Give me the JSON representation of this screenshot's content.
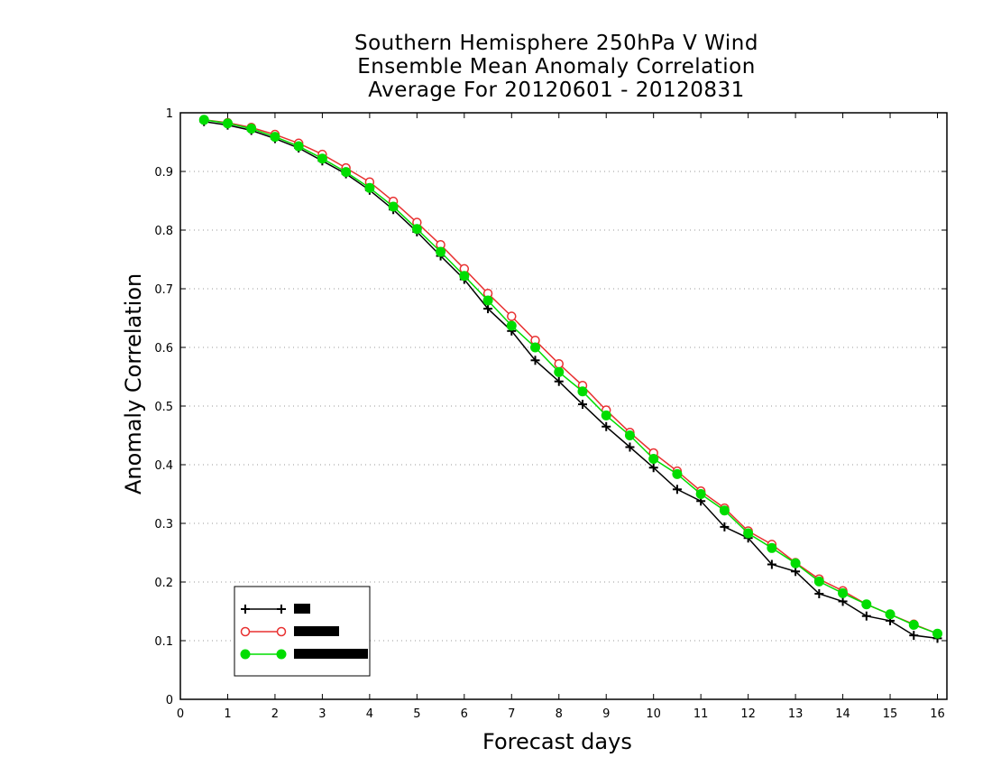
{
  "chart_data": {
    "type": "line",
    "title": [
      "Southern Hemisphere 250hPa V Wind",
      "Ensemble Mean Anomaly Correlation",
      "Average For 20120601 - 20120831"
    ],
    "xlabel": "Forecast days",
    "ylabel": "Anomaly Correlation",
    "xlim": [
      0,
      16.2
    ],
    "ylim": [
      0,
      1
    ],
    "xticks": [
      0,
      1,
      2,
      3,
      4,
      5,
      6,
      7,
      8,
      9,
      10,
      11,
      12,
      13,
      14,
      15,
      16
    ],
    "yticks": [
      0,
      0.1,
      0.2,
      0.3,
      0.4,
      0.5,
      0.6,
      0.7,
      0.8,
      0.9,
      1
    ],
    "ytick_labels": [
      "0",
      "0.1",
      "0.2",
      "0.3",
      "0.4",
      "0.5",
      "0.6",
      "0.7",
      "0.8",
      "0.9",
      "1"
    ],
    "grid": "horizontal dotted",
    "legend_position": "bottom-left",
    "x": [
      0.5,
      1,
      1.5,
      2,
      2.5,
      3,
      3.5,
      4,
      4.5,
      5,
      5.5,
      6,
      6.5,
      7,
      7.5,
      8,
      8.5,
      9,
      9.5,
      10,
      10.5,
      11,
      11.5,
      12,
      12.5,
      13,
      13.5,
      14,
      14.5,
      15,
      15.5,
      16
    ],
    "series": [
      {
        "color": "#000000",
        "marker": "plus",
        "values": [
          0.985,
          0.979,
          0.97,
          0.956,
          0.94,
          0.918,
          0.896,
          0.868,
          0.835,
          0.797,
          0.756,
          0.716,
          0.666,
          0.628,
          0.578,
          0.542,
          0.503,
          0.465,
          0.43,
          0.395,
          0.358,
          0.338,
          0.294,
          0.275,
          0.23,
          0.218,
          0.18,
          0.167,
          0.142,
          0.134,
          0.109,
          0.104
        ]
      },
      {
        "color": "#e83030",
        "marker": "open-circle",
        "values": [
          0.988,
          0.983,
          0.975,
          0.963,
          0.948,
          0.929,
          0.906,
          0.882,
          0.849,
          0.813,
          0.775,
          0.734,
          0.692,
          0.653,
          0.612,
          0.572,
          0.535,
          0.493,
          0.455,
          0.42,
          0.389,
          0.355,
          0.326,
          0.287,
          0.264,
          0.233,
          0.205,
          0.185,
          0.162,
          0.145,
          0.128,
          0.112
        ]
      },
      {
        "color": "#00dd00",
        "marker": "filled-circle",
        "values": [
          0.988,
          0.982,
          0.973,
          0.959,
          0.943,
          0.922,
          0.899,
          0.872,
          0.84,
          0.802,
          0.763,
          0.722,
          0.68,
          0.637,
          0.6,
          0.558,
          0.525,
          0.484,
          0.45,
          0.41,
          0.384,
          0.35,
          0.322,
          0.283,
          0.258,
          0.232,
          0.201,
          0.181,
          0.162,
          0.145,
          0.127,
          0.112
        ]
      }
    ]
  }
}
